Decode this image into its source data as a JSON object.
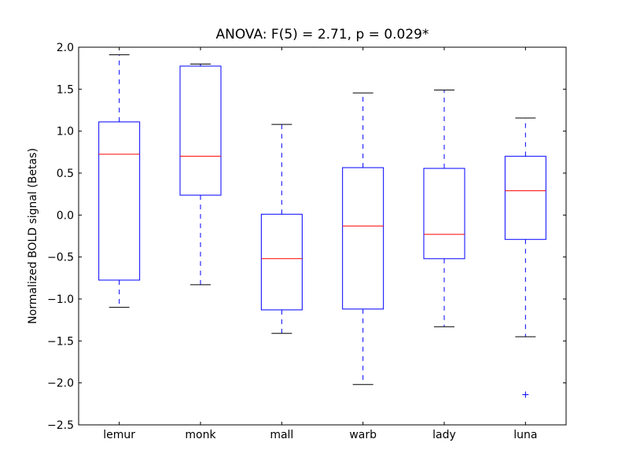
{
  "chart_data": {
    "type": "boxplot",
    "title": "ANOVA: F(5) = 2.71, p = 0.029*",
    "xlabel": "",
    "ylabel": "Normalized BOLD signal (Betas)",
    "ylim": [
      -2.5,
      2.0
    ],
    "yticks": [
      -2.5,
      -2.0,
      -1.5,
      -1.0,
      -0.5,
      0.0,
      0.5,
      1.0,
      1.5,
      2.0
    ],
    "ytick_labels": [
      "−2.5",
      "−2.0",
      "−1.5",
      "−1.0",
      "−0.5",
      "0.0",
      "0.5",
      "1.0",
      "1.5",
      "2.0"
    ],
    "grid": false,
    "categories": [
      "lemur",
      "monk",
      "mall",
      "warb",
      "lady",
      "luna"
    ],
    "boxes": [
      {
        "whisker_low": -1.1,
        "q1": -0.775,
        "median": 0.725,
        "q3": 1.11,
        "whisker_high": 1.91,
        "outliers": []
      },
      {
        "whisker_low": -0.83,
        "q1": 0.237,
        "median": 0.7,
        "q3": 1.775,
        "whisker_high": 1.8,
        "outliers": []
      },
      {
        "whisker_low": -1.41,
        "q1": -1.13,
        "median": -0.52,
        "q3": 0.01,
        "whisker_high": 1.08,
        "outliers": []
      },
      {
        "whisker_low": -2.02,
        "q1": -1.12,
        "median": -0.13,
        "q3": 0.565,
        "whisker_high": 1.455,
        "outliers": []
      },
      {
        "whisker_low": -1.33,
        "q1": -0.52,
        "median": -0.23,
        "q3": 0.556,
        "whisker_high": 1.49,
        "outliers": []
      },
      {
        "whisker_low": -1.45,
        "q1": -0.29,
        "median": 0.29,
        "q3": 0.7,
        "whisker_high": 1.156,
        "outliers": [
          -2.14
        ]
      }
    ],
    "colors": {
      "box": "#0000ff",
      "median": "#ff0000",
      "cap": "#000000",
      "outlier": "#0000ff"
    }
  }
}
